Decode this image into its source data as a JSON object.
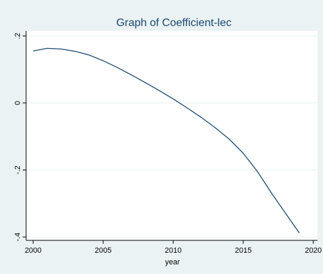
{
  "chart_data": {
    "type": "line",
    "title": "Graph of Coefficient-lec",
    "xlabel": "year",
    "ylabel": "",
    "xlim": [
      1999.5,
      2020.3
    ],
    "ylim": [
      -0.41,
      0.215
    ],
    "x_ticks": [
      2000,
      2005,
      2010,
      2015,
      2020
    ],
    "x_tick_labels": [
      "2000",
      "2005",
      "2010",
      "2015",
      "2020"
    ],
    "y_ticks": [
      0.2,
      0,
      -0.2,
      -0.4
    ],
    "y_tick_labels": [
      ".2",
      "0",
      "-.2",
      "-.4"
    ],
    "grid": "horizontal",
    "legend": "none",
    "series": [
      {
        "x": [
          2000,
          2001,
          2002,
          2003,
          2004,
          2005,
          2006,
          2007,
          2008,
          2009,
          2010,
          2011,
          2012,
          2013,
          2014,
          2015,
          2016,
          2017,
          2018,
          2019
        ],
        "values": [
          0.155,
          0.163,
          0.161,
          0.154,
          0.143,
          0.126,
          0.106,
          0.084,
          0.061,
          0.037,
          0.012,
          -0.015,
          -0.043,
          -0.074,
          -0.108,
          -0.15,
          -0.204,
          -0.268,
          -0.328,
          -0.388
        ]
      }
    ],
    "colors": {
      "background": "#eaf2f3",
      "plot_background": "#ffffff",
      "line": "#1a476f",
      "grid": "#eaf2f3",
      "title": "#1a476f"
    }
  }
}
